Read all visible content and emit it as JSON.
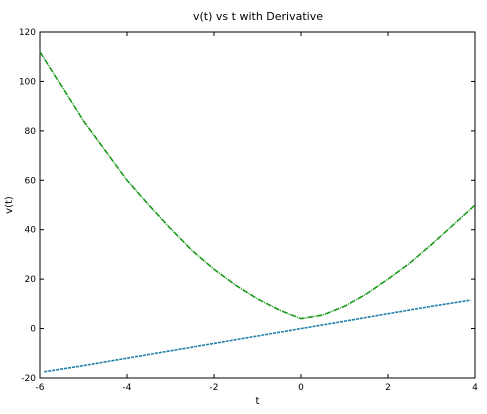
{
  "chart_data": {
    "type": "line",
    "title": "v(t) vs t with Derivative",
    "xlabel": "t",
    "ylabel": "v(t)",
    "xlim": [
      -6,
      4
    ],
    "ylim": [
      -20,
      120
    ],
    "x_ticks": [
      -6,
      -4,
      -2,
      0,
      2,
      4
    ],
    "y_ticks": [
      -20,
      0,
      20,
      40,
      60,
      80,
      100,
      120
    ],
    "grid": false,
    "series": [
      {
        "color": "#1a9a1a",
        "x": [
          -6,
          -5.5,
          -5,
          -4.5,
          -4,
          -3.5,
          -3,
          -2.5,
          -2,
          -1.5,
          -1,
          -0.5,
          0,
          0.5,
          1,
          1.5,
          2,
          2.5,
          3,
          3.5,
          4
        ],
        "values": [
          112,
          98,
          84,
          72,
          60,
          50,
          40.5,
          31.5,
          24,
          17.5,
          12,
          7.5,
          4,
          5.5,
          9,
          14,
          20,
          26.5,
          34,
          42,
          50
        ]
      },
      {
        "color": "#1f7fa8",
        "x": [
          -5.9,
          -5,
          -4,
          -3,
          -2,
          -1,
          0,
          1,
          2,
          3,
          3.9
        ],
        "values": [
          -17.5,
          -15,
          -12,
          -9,
          -6,
          -3,
          0,
          3,
          6,
          9,
          11.5
        ]
      }
    ]
  }
}
